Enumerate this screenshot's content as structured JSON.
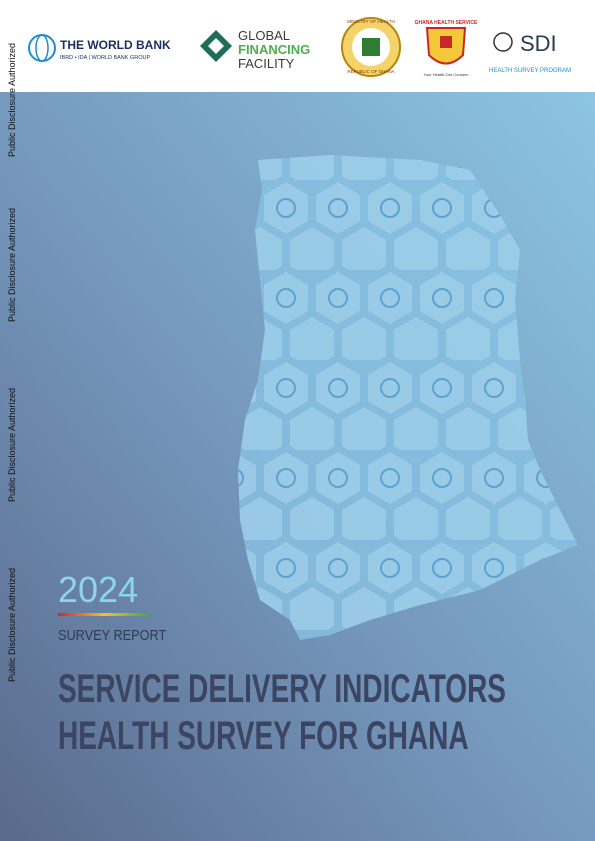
{
  "side_labels": [
    "Public Disclosure Authorized",
    "Public Disclosure Authorized",
    "Public Disclosure Authorized",
    "Public Disclosure Authorized"
  ],
  "logos": {
    "world_bank": {
      "name": "THE WORLD BANK",
      "sub": "IBRD • IDA | WORLD BANK GROUP"
    },
    "gff": {
      "line1": "GLOBAL",
      "line2": "FINANCING",
      "line3": "FACILITY"
    },
    "ministry": {
      "top": "MINISTRY OF HEALTH",
      "bottom": "REPUBLIC OF GHANA"
    },
    "ghs": {
      "name": "GHANA HEALTH SERVICE",
      "motto": "Your Health-Our Concern"
    },
    "sdi": {
      "name": "SDI",
      "sub": "HEALTH SURVEY PROGRAM"
    }
  },
  "cover": {
    "year": "2024",
    "kicker": "SURVEY REPORT",
    "title_line1": "SERVICE DELIVERY INDICATORS",
    "title_line2": "HEALTH SURVEY FOR GHANA"
  }
}
